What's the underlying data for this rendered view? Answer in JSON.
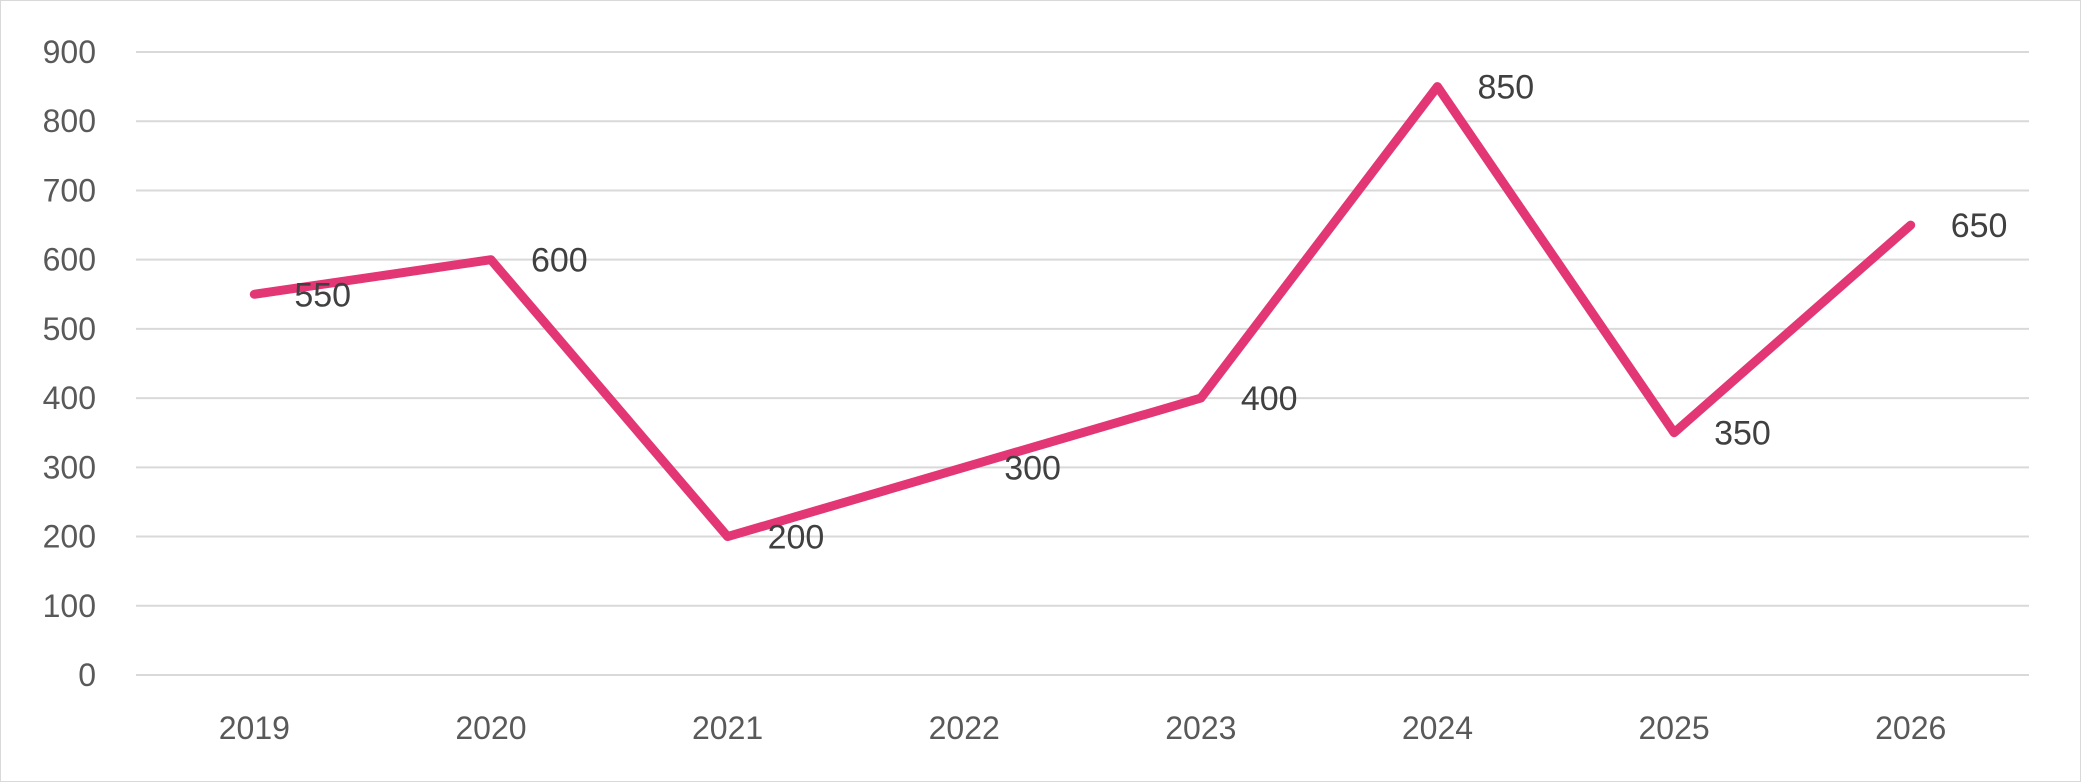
{
  "chart_data": {
    "type": "line",
    "title": "",
    "xlabel": "",
    "ylabel": "",
    "categories": [
      "2019",
      "2020",
      "2021",
      "2022",
      "2023",
      "2024",
      "2025",
      "2026"
    ],
    "series": [
      {
        "values": [
          550,
          600,
          200,
          300,
          400,
          850,
          350,
          650
        ]
      }
    ],
    "ylim": [
      0,
      900
    ],
    "ytick_step": 100,
    "y_tick_labels": [
      "0",
      "100",
      "200",
      "300",
      "400",
      "500",
      "600",
      "700",
      "800",
      "900"
    ],
    "grid": true,
    "legend": "none",
    "data_labels": true,
    "colors": {
      "line": "#e33674",
      "grid": "#d9d9d9",
      "tick_text": "#595959",
      "label_text": "#404040"
    }
  }
}
